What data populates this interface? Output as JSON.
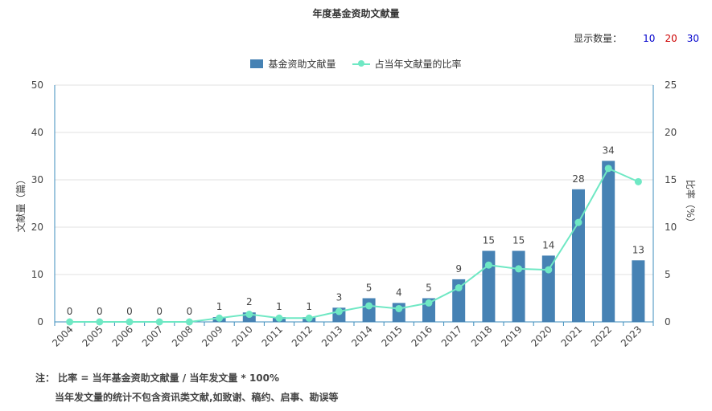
{
  "header": {
    "title": "年度基金资助文献量"
  },
  "display_count": {
    "label": "显示数量：",
    "options": [
      "10",
      "20",
      "30"
    ],
    "colors": [
      "#0000cc",
      "#cc0000",
      "#0000cc"
    ]
  },
  "chart_data": {
    "type": "bar",
    "categories": [
      "2004",
      "2005",
      "2006",
      "2007",
      "2008",
      "2009",
      "2010",
      "2011",
      "2012",
      "2013",
      "2014",
      "2015",
      "2016",
      "2017",
      "2018",
      "2019",
      "2020",
      "2021",
      "2022",
      "2023"
    ],
    "series": [
      {
        "name": "基金资助文献量",
        "type": "bar",
        "axis": "left",
        "color": "#4682b4",
        "values": [
          0,
          0,
          0,
          0,
          0,
          1,
          2,
          1,
          1,
          3,
          5,
          4,
          5,
          9,
          15,
          15,
          14,
          28,
          34,
          13
        ]
      },
      {
        "name": "占当年文献量的比率",
        "type": "line",
        "axis": "right",
        "color": "#6fe8c4",
        "values": [
          0,
          0,
          0,
          0,
          0,
          0.4,
          0.8,
          0.4,
          0.4,
          1.1,
          1.7,
          1.4,
          2.0,
          3.6,
          6.0,
          5.6,
          5.5,
          10.5,
          16.2,
          14.8
        ]
      }
    ],
    "ylabel": "文献量（篇）",
    "y2label": "比率（%）",
    "ylim": [
      0,
      50
    ],
    "y2lim": [
      0,
      25
    ],
    "yticks": [
      0,
      10,
      20,
      30,
      40,
      50
    ],
    "y2ticks": [
      0,
      5,
      10,
      15,
      20,
      25
    ],
    "grid": true,
    "legend_position": "top-center"
  },
  "notes": {
    "line1": "注： 比率 = 当年基金资助文献量 / 当年发文量 * 100%",
    "line2": "当年发文量的统计不包含资讯类文献,如致谢、稿约、启事、勘误等"
  }
}
